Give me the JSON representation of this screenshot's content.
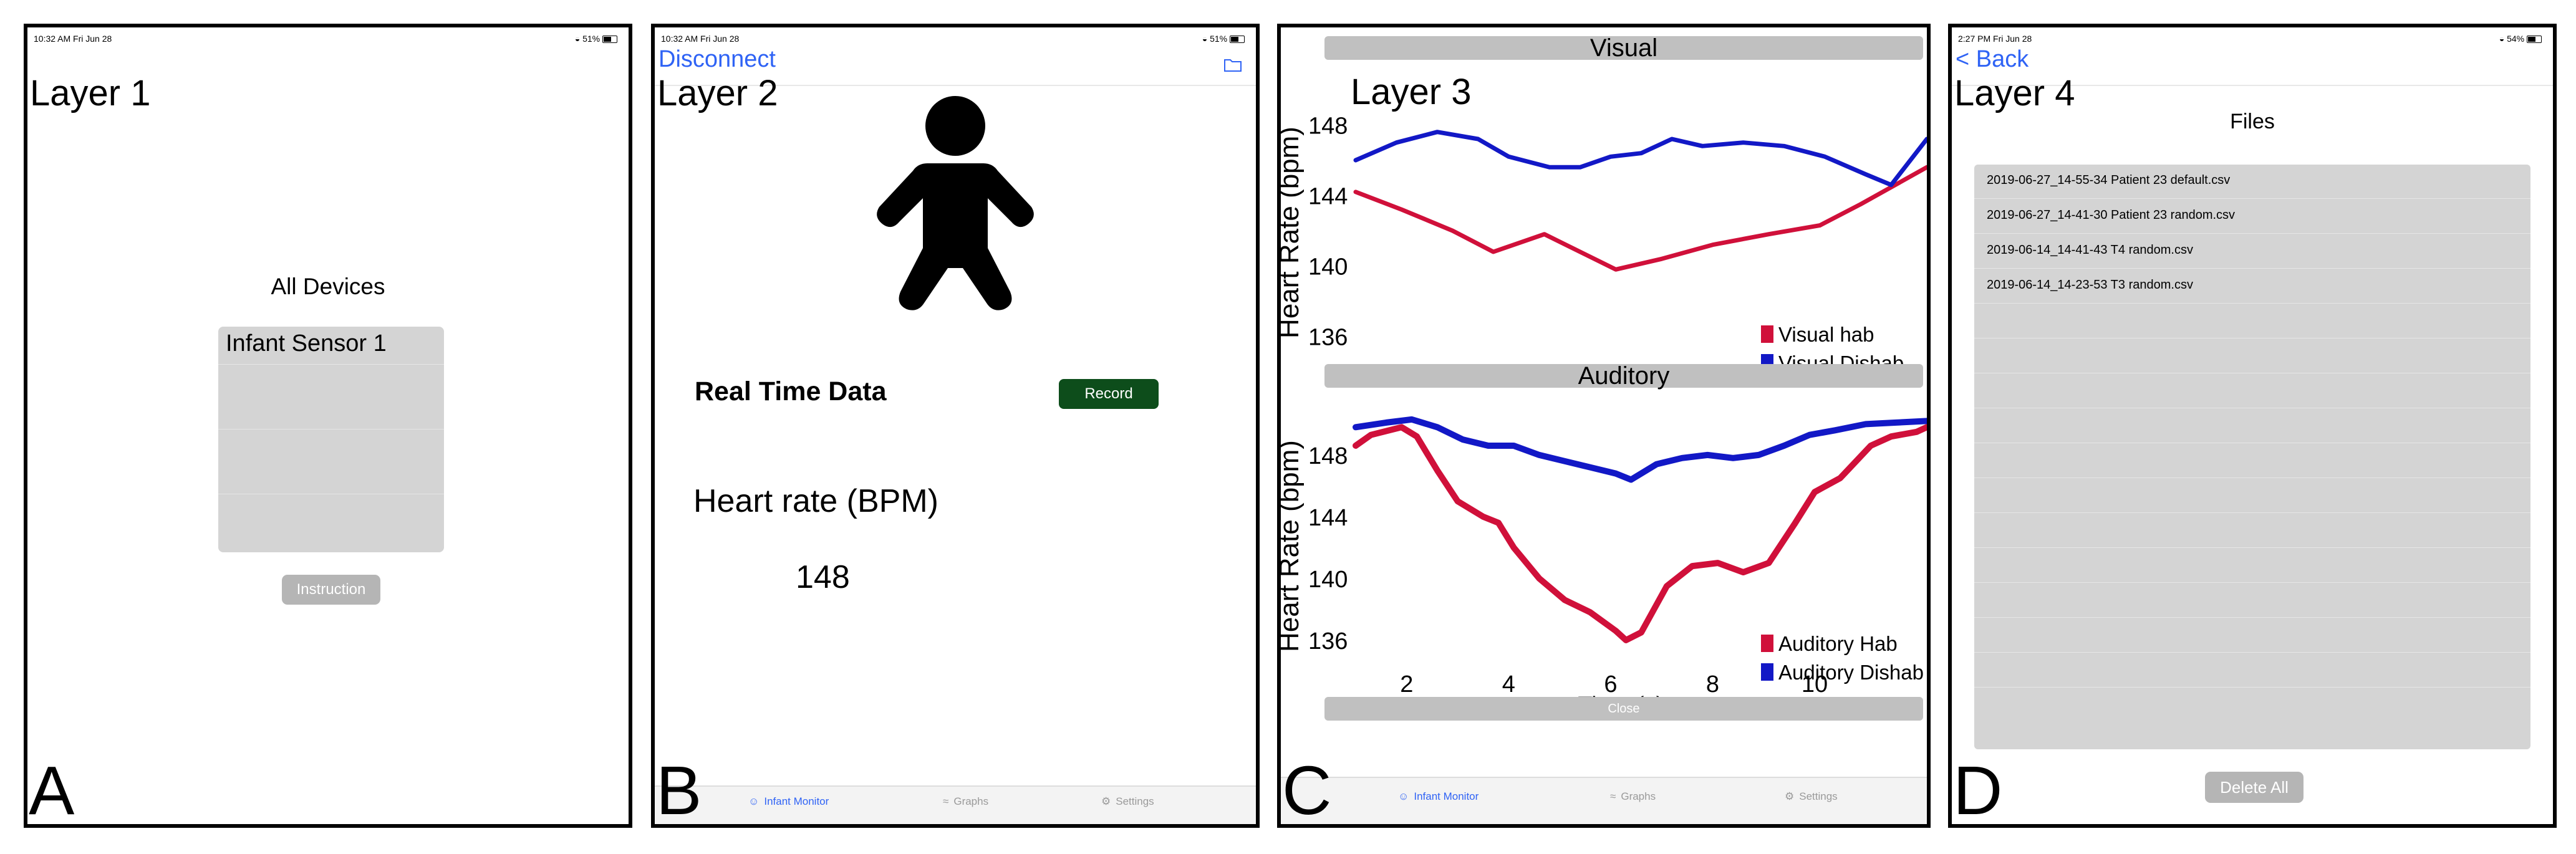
{
  "panels": {
    "a": {
      "status": {
        "time": "10:32 AM   Fri Jun 28",
        "battery": "51%"
      },
      "layer": "Layer 1",
      "title": "All Devices",
      "devices": [
        "Infant Sensor 1"
      ],
      "instruction": "Instruction",
      "letter": "A"
    },
    "b": {
      "status": {
        "time": "10:32 AM   Fri Jun 28",
        "battery": "51%"
      },
      "disconnect": "Disconnect",
      "layer": "Layer 2",
      "realtime": "Real Time Data",
      "record": "Record",
      "hr_label": "Heart rate (BPM)",
      "hr_value": "148",
      "tabs": [
        "Infant Monitor",
        "Graphs",
        "Settings"
      ],
      "letter": "B"
    },
    "c": {
      "layer": "Layer 3",
      "visual": "Visual",
      "auditory": "Auditory",
      "close": "Close",
      "tabs": [
        "Infant Monitor",
        "Graphs",
        "Settings"
      ],
      "letter": "C"
    },
    "d": {
      "status": {
        "time": "2:27 PM   Fri Jun 28",
        "battery": "54%"
      },
      "back": "< Back",
      "layer": "Layer 4",
      "files_title": "Files",
      "files": [
        "2019-06-27_14-55-34 Patient 23 default.csv",
        "2019-06-27_14-41-30 Patient 23 random.csv",
        "2019-06-14_14-41-43 T4 random.csv",
        "2019-06-14_14-23-53 T3 random.csv"
      ],
      "delete_all": "Delete All",
      "letter": "D"
    }
  },
  "colors": {
    "hab": "#d0103a",
    "dishab": "#1218c6",
    "record_bg": "#0d4d1b",
    "link": "#2f63f5"
  },
  "chart_data": [
    {
      "type": "line",
      "title": "Visual",
      "xlabel": "",
      "ylabel": "Heart Rate (bpm)",
      "ylim": [
        135,
        149.5
      ],
      "xlim": [
        1.0,
        12.2
      ],
      "yticks": [
        "148",
        "144",
        "140",
        "136"
      ],
      "legend": "bottom-right",
      "series": [
        {
          "name": "Visual hab",
          "color": "#d0103a",
          "x": [
            1.0,
            1.9,
            2.9,
            3.7,
            4.7,
            5.4,
            6.1,
            7.0,
            8.0,
            9.1,
            10.1,
            10.9,
            12.2
          ],
          "y": [
            144.2,
            143.2,
            142.0,
            140.8,
            141.8,
            140.8,
            139.8,
            140.4,
            141.2,
            141.8,
            142.3,
            143.5,
            145.6
          ]
        },
        {
          "name": "Visual Dishab",
          "color": "#1218c6",
          "x": [
            1.0,
            1.8,
            2.6,
            3.4,
            4.0,
            4.8,
            5.4,
            6.0,
            6.6,
            7.2,
            7.8,
            8.6,
            9.4,
            10.2,
            11.0,
            11.5,
            12.2
          ],
          "y": [
            146.0,
            147.0,
            147.6,
            147.2,
            146.2,
            145.6,
            145.6,
            146.2,
            146.4,
            147.2,
            146.8,
            147.0,
            146.8,
            146.2,
            145.2,
            144.6,
            147.2
          ]
        }
      ]
    },
    {
      "type": "line",
      "title": "Auditory",
      "xlabel": "Time (s)",
      "ylabel": "Heart Rate (bpm)",
      "ylim": [
        134.5,
        150.5
      ],
      "xlim": [
        1.0,
        12.2
      ],
      "yticks": [
        "148",
        "144",
        "140",
        "136"
      ],
      "xticks": [
        "2",
        "4",
        "6",
        "8",
        "10"
      ],
      "legend": "bottom-right",
      "series": [
        {
          "name": "Auditory Hab",
          "color": "#d0103a",
          "x": [
            1.0,
            1.3,
            1.9,
            2.2,
            2.6,
            3.0,
            3.5,
            3.8,
            4.1,
            4.6,
            5.1,
            5.6,
            6.1,
            6.3,
            6.6,
            7.1,
            7.6,
            8.1,
            8.6,
            9.1,
            9.6,
            10.0,
            10.5,
            11.1,
            11.5,
            12.0,
            12.2
          ],
          "y": [
            148.6,
            149.3,
            149.8,
            149.2,
            147.0,
            145.0,
            144.0,
            143.6,
            142.0,
            140.0,
            138.6,
            137.8,
            136.6,
            136.0,
            136.5,
            139.5,
            140.8,
            141.0,
            140.4,
            141.0,
            143.5,
            145.6,
            146.5,
            148.6,
            149.2,
            149.5,
            149.8
          ]
        },
        {
          "name": "Auditory Dishab",
          "color": "#1218c6",
          "x": [
            1.0,
            1.6,
            2.1,
            2.6,
            3.1,
            3.6,
            4.1,
            4.6,
            5.1,
            5.6,
            6.1,
            6.4,
            6.9,
            7.4,
            7.9,
            8.4,
            8.9,
            9.4,
            9.9,
            10.4,
            11.0,
            11.6,
            12.2
          ],
          "y": [
            149.8,
            150.1,
            150.3,
            149.8,
            149.0,
            148.6,
            148.6,
            148.0,
            147.6,
            147.2,
            146.8,
            146.4,
            147.4,
            147.8,
            148.0,
            147.8,
            148.0,
            148.6,
            149.3,
            149.6,
            150.0,
            150.1,
            150.2
          ]
        }
      ]
    }
  ]
}
